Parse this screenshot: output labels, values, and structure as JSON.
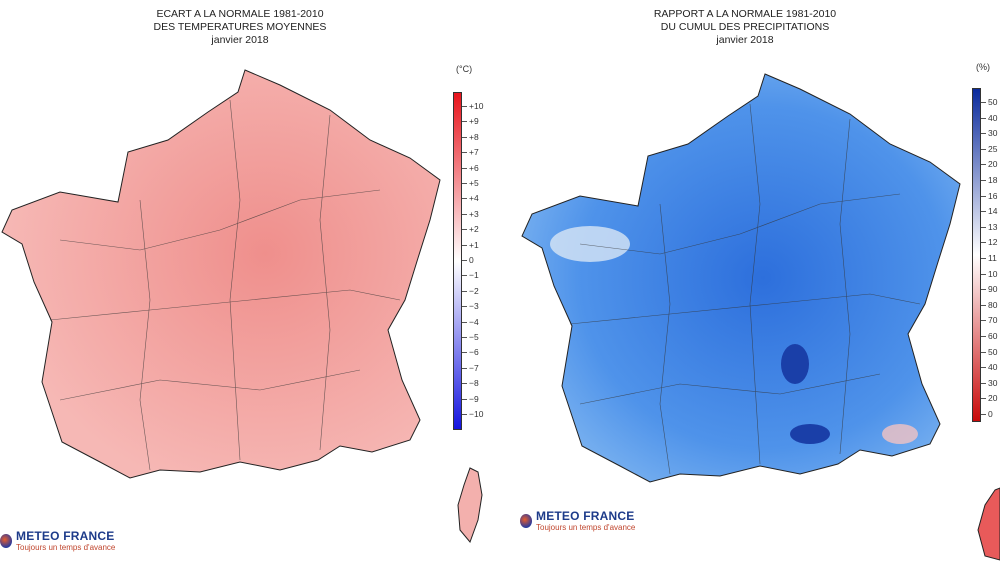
{
  "left_map": {
    "title_lines": [
      "ECART A LA NORMALE 1981-2010",
      "DES TEMPERATURES MOYENNES",
      "janvier 2018"
    ],
    "unit": "(°C)",
    "legend_labels": [
      "+10",
      "+9",
      "+8",
      "+7",
      "+6",
      "+5",
      "+4",
      "+3",
      "+2",
      "+1",
      "0",
      "−1",
      "−2",
      "−3",
      "−4",
      "−5",
      "−6",
      "−7",
      "−8",
      "−9",
      "−10"
    ],
    "legend_colors": {
      "top": "#e8141c",
      "middle": "#ffffff",
      "bottom": "#1414e0"
    },
    "map_fill": "#f2a3a0"
  },
  "right_map": {
    "title_lines": [
      "RAPPORT A LA NORMALE 1981-2010",
      "DU CUMUL DES PRECIPITATIONS",
      "janvier 2018"
    ],
    "unit": "(%)",
    "legend_labels": [
      "50",
      "40",
      "30",
      "25",
      "20",
      "18",
      "16",
      "14",
      "13",
      "12",
      "11",
      "10",
      "90",
      "80",
      "70",
      "60",
      "50",
      "40",
      "30",
      "20",
      "0"
    ],
    "legend_colors": {
      "top": "#0a2a9c",
      "middle": "#ffffff",
      "bottom": "#c80a0a"
    },
    "map_fill": "#4a8ee8"
  },
  "logo": {
    "name": "METEO FRANCE",
    "tagline": "Toujours un temps d'avance"
  }
}
